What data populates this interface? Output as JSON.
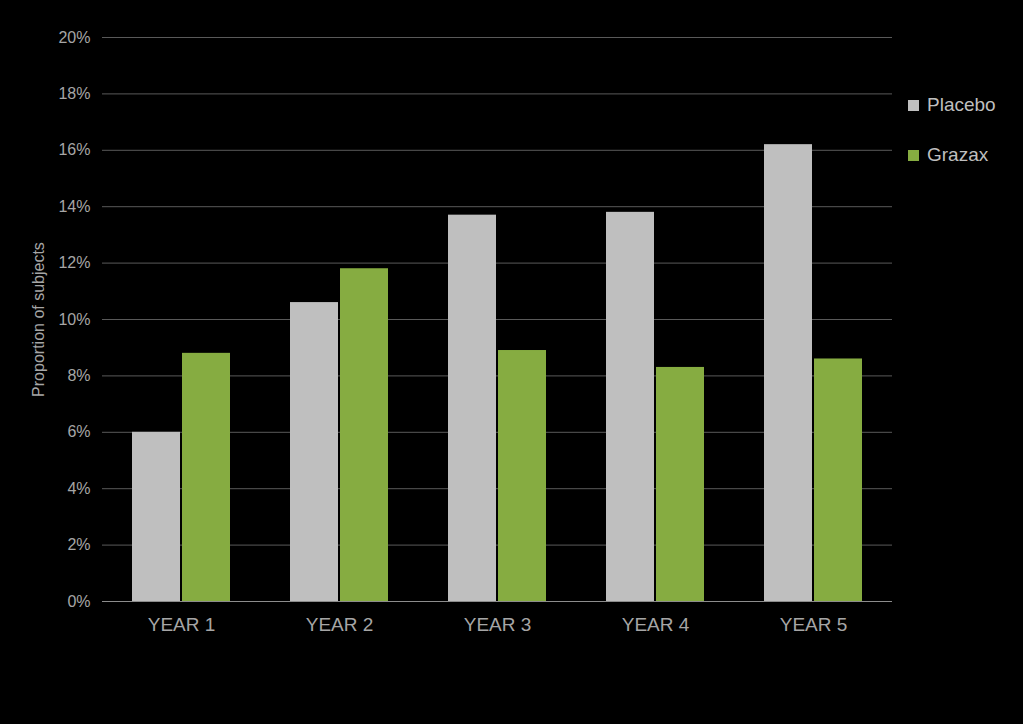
{
  "chart_data": {
    "type": "bar",
    "y_label": "Proportion of subjects",
    "categories": [
      "YEAR 1",
      "YEAR 2",
      "YEAR 3",
      "YEAR 4",
      "YEAR 5"
    ],
    "series": [
      {
        "name": "Placebo",
        "color": "#bfbfbf",
        "values": [
          6.0,
          10.6,
          13.7,
          13.8,
          16.2
        ]
      },
      {
        "name": "Grazax",
        "color": "#86ac41",
        "values": [
          8.8,
          11.8,
          8.9,
          8.3,
          8.6
        ]
      }
    ],
    "ylim": [
      0,
      20
    ],
    "yticks": [
      {
        "value": 0,
        "label": "0%"
      },
      {
        "value": 2,
        "label": "2%"
      },
      {
        "value": 4,
        "label": "4%"
      },
      {
        "value": 6,
        "label": "6%"
      },
      {
        "value": 8,
        "label": "8%"
      },
      {
        "value": 10,
        "label": "10%"
      },
      {
        "value": 12,
        "label": "12%"
      },
      {
        "value": 14,
        "label": "14%"
      },
      {
        "value": 16,
        "label": "16%"
      },
      {
        "value": 18,
        "label": "18%"
      },
      {
        "value": 20,
        "label": "20%"
      }
    ],
    "grid": true,
    "legend": "right"
  }
}
